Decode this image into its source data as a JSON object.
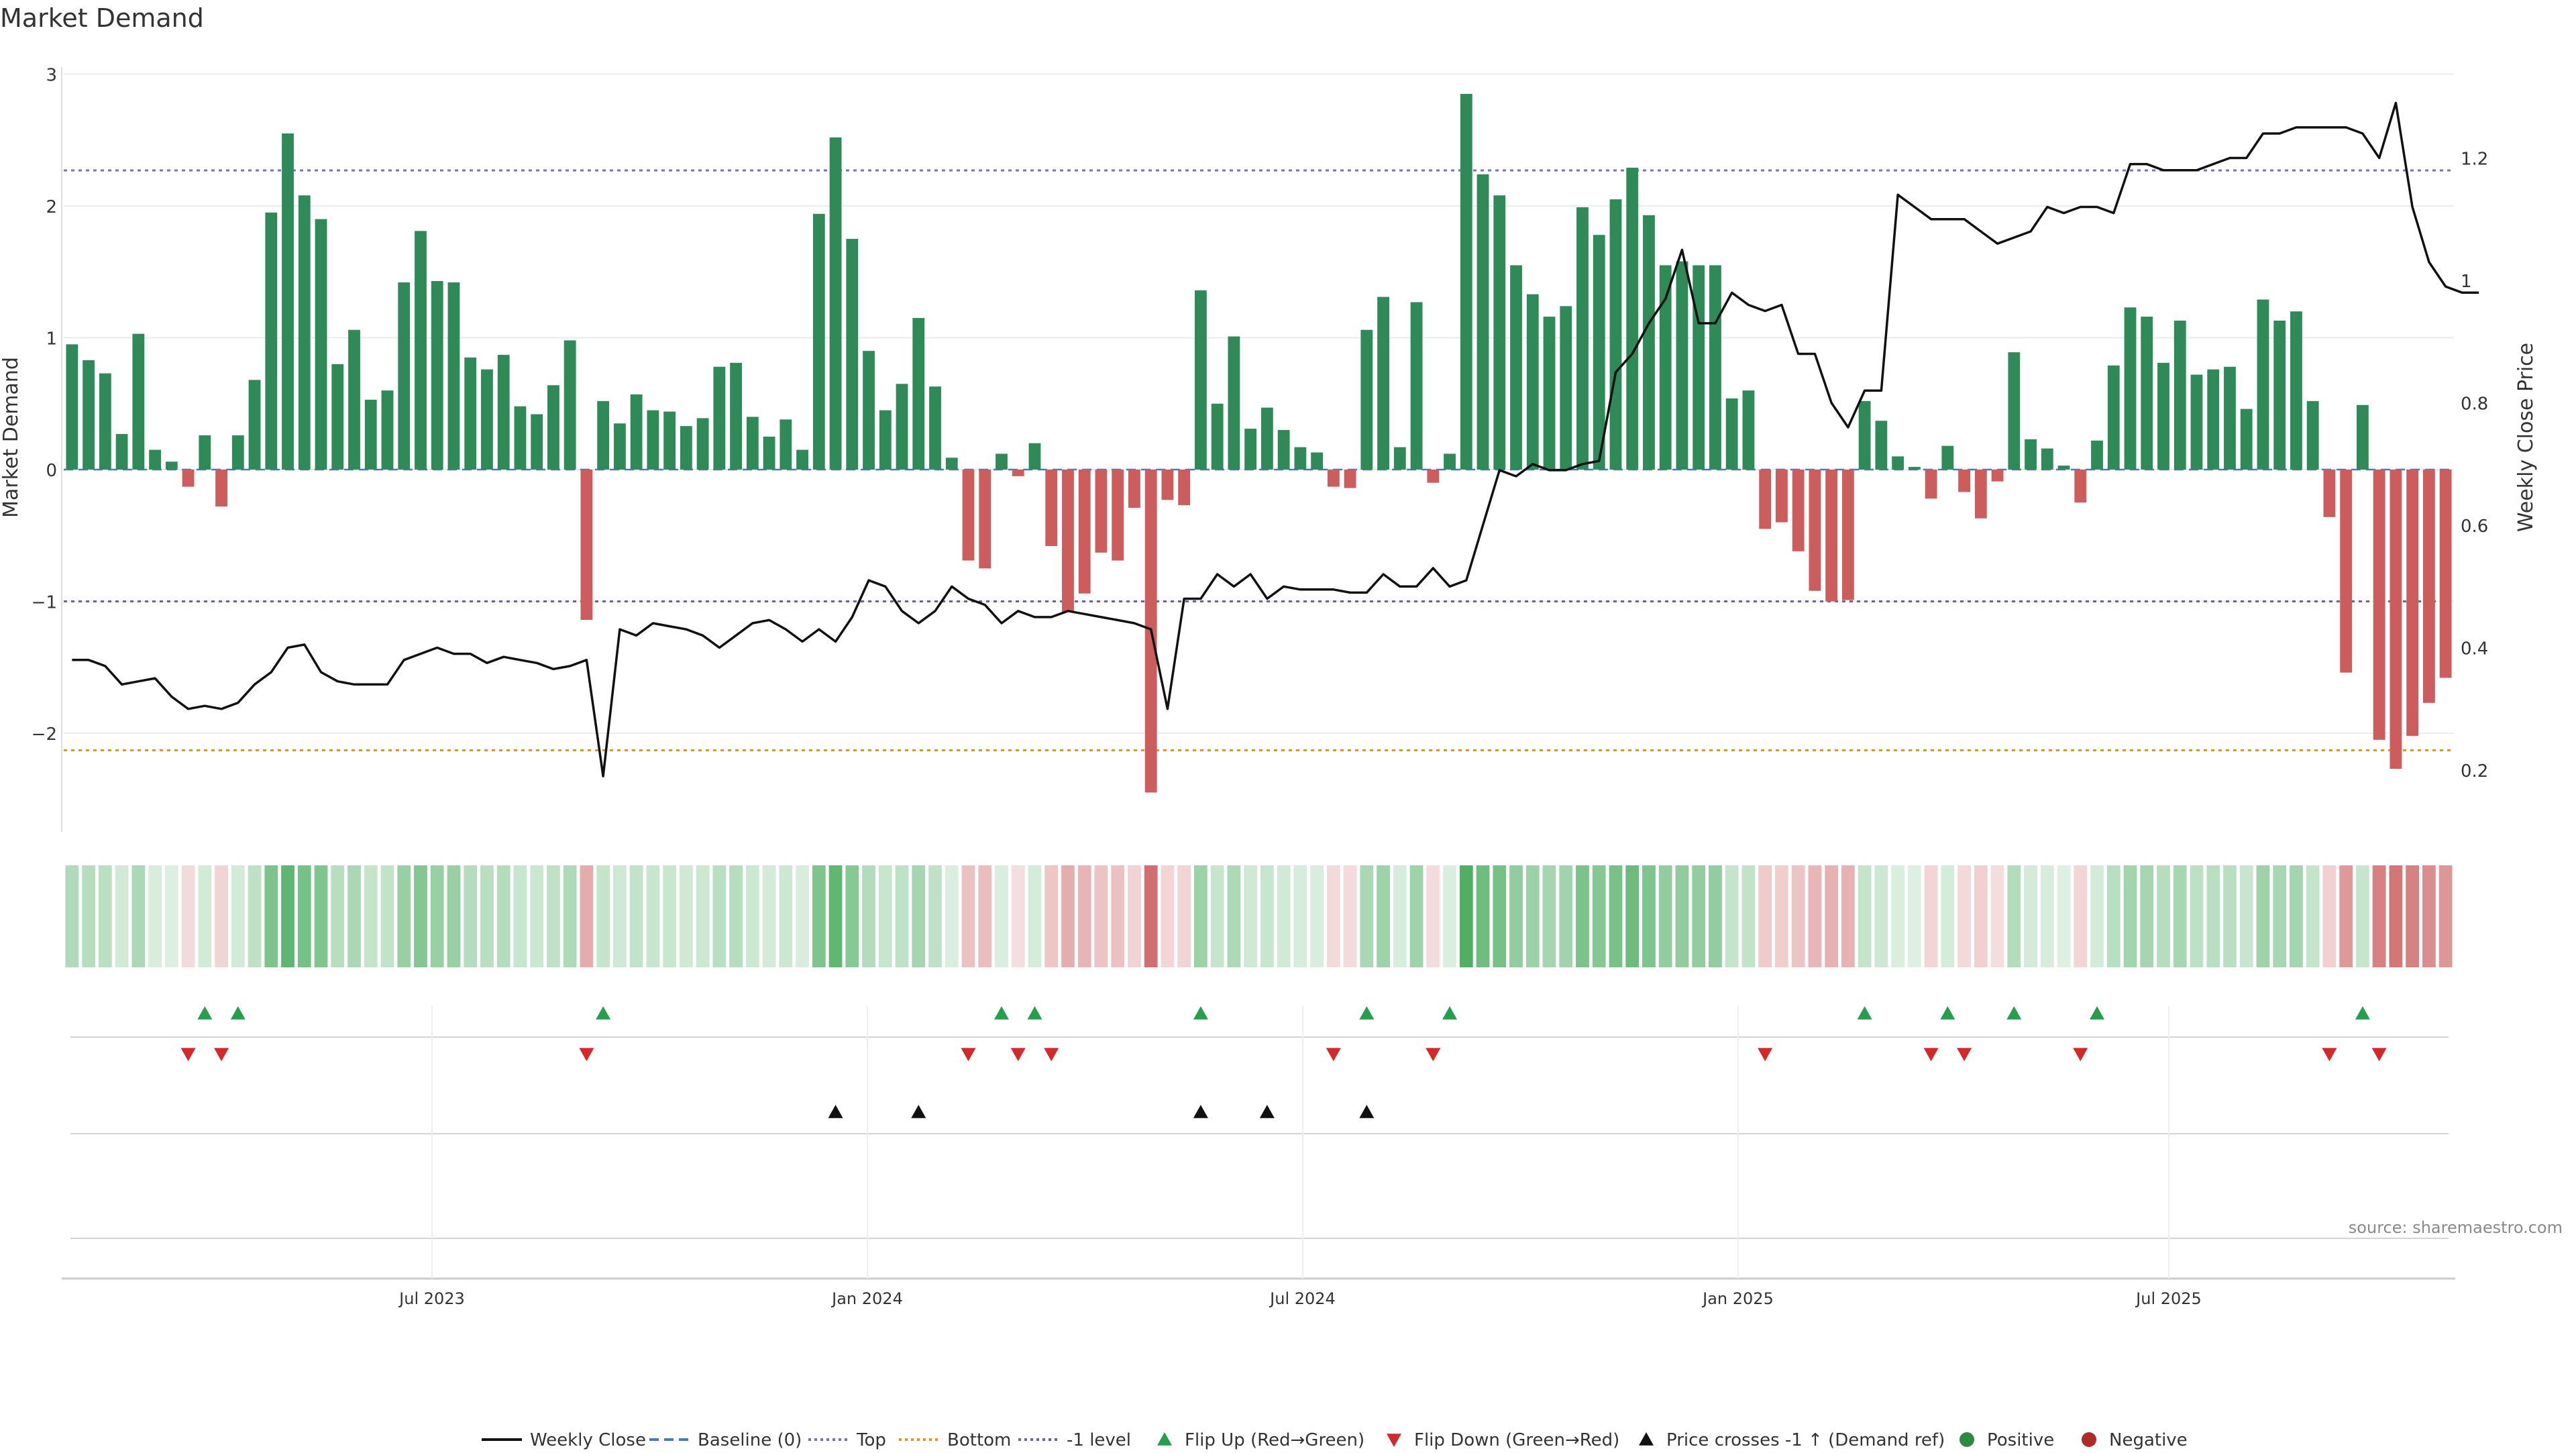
{
  "chart_data": {
    "title": "Market Demand",
    "type": "bar+line",
    "ylabel_left": "Market Demand",
    "ylabel_right": "Weekly Close Price",
    "ylim_left": [
      -2.75,
      3.0
    ],
    "ylim_right": [
      0.1,
      1.33
    ],
    "yticks_left": [
      "3",
      "2",
      "1",
      "0",
      "−1",
      "−2"
    ],
    "yticks_right": [
      "1.2",
      "1",
      "0.8",
      "0.6",
      "0.4",
      "0.2"
    ],
    "x_ticks": [
      "Jul 2023",
      "Jan 2024",
      "Jul 2024",
      "Jan 2025",
      "Jul 2025"
    ],
    "reference_lines": {
      "top": 2.27,
      "bottom": -2.13,
      "minus_one": -1.0,
      "baseline": 0
    },
    "demand": [
      0.95,
      0.83,
      0.73,
      0.27,
      1.03,
      0.15,
      0.06,
      -0.13,
      0.26,
      -0.28,
      0.26,
      0.68,
      1.95,
      2.55,
      2.08,
      1.9,
      0.8,
      1.06,
      0.53,
      0.6,
      1.42,
      1.81,
      1.43,
      1.42,
      0.85,
      0.76,
      0.87,
      0.48,
      0.42,
      0.64,
      0.98,
      -1.14,
      0.52,
      0.35,
      0.57,
      0.45,
      0.44,
      0.33,
      0.39,
      0.78,
      0.81,
      0.4,
      0.25,
      0.38,
      0.15,
      1.94,
      2.52,
      1.75,
      0.9,
      0.45,
      0.65,
      1.15,
      0.63,
      0.09,
      -0.69,
      -0.75,
      0.12,
      -0.05,
      0.2,
      -0.58,
      -1.08,
      -0.94,
      -0.63,
      -0.69,
      -0.29,
      -2.45,
      -0.23,
      -0.27,
      1.36,
      0.5,
      1.01,
      0.31,
      0.47,
      0.3,
      0.17,
      0.13,
      -0.13,
      -0.14,
      1.06,
      1.31,
      0.17,
      1.27,
      -0.1,
      0.12,
      2.85,
      2.24,
      2.08,
      1.55,
      1.33,
      1.16,
      1.24,
      1.99,
      1.78,
      2.05,
      2.29,
      1.93,
      1.55,
      1.58,
      1.55,
      1.55,
      0.54,
      0.6,
      -0.45,
      -0.4,
      -0.62,
      -0.92,
      -1.0,
      -0.99,
      0.52,
      0.37,
      0.1,
      0.02,
      -0.22,
      0.18,
      -0.17,
      -0.37,
      -0.09,
      0.89,
      0.23,
      0.16,
      0.03,
      -0.25,
      0.22,
      0.79,
      1.23,
      1.16,
      0.81,
      1.13,
      0.72,
      0.76,
      0.78,
      0.46,
      1.29,
      1.13,
      1.2,
      0.52,
      -0.36,
      -1.54,
      0.49,
      -2.05,
      -2.27,
      -2.02,
      -1.77,
      -1.58
    ],
    "weekly_close": [
      0.38,
      0.38,
      0.37,
      0.34,
      0.345,
      0.35,
      0.32,
      0.3,
      0.305,
      0.3,
      0.31,
      0.34,
      0.36,
      0.4,
      0.405,
      0.36,
      0.345,
      0.34,
      0.34,
      0.34,
      0.38,
      0.39,
      0.4,
      0.39,
      0.39,
      0.375,
      0.385,
      0.38,
      0.375,
      0.365,
      0.37,
      0.38,
      0.19,
      0.43,
      0.42,
      0.44,
      0.435,
      0.43,
      0.42,
      0.4,
      0.42,
      0.44,
      0.445,
      0.43,
      0.41,
      0.43,
      0.41,
      0.45,
      0.51,
      0.5,
      0.46,
      0.44,
      0.46,
      0.5,
      0.48,
      0.47,
      0.44,
      0.46,
      0.45,
      0.45,
      0.46,
      0.455,
      0.45,
      0.445,
      0.44,
      0.43,
      0.3,
      0.48,
      0.48,
      0.52,
      0.5,
      0.52,
      0.48,
      0.5,
      0.495,
      0.495,
      0.495,
      0.49,
      0.49,
      0.52,
      0.5,
      0.5,
      0.53,
      0.5,
      0.51,
      0.6,
      0.69,
      0.68,
      0.7,
      0.69,
      0.69,
      0.7,
      0.705,
      0.85,
      0.88,
      0.93,
      0.97,
      1.05,
      0.93,
      0.93,
      0.98,
      0.96,
      0.95,
      0.96,
      0.88,
      0.88,
      0.8,
      0.76,
      0.82,
      0.82,
      1.14,
      1.12,
      1.1,
      1.1,
      1.1,
      1.08,
      1.06,
      1.07,
      1.08,
      1.12,
      1.11,
      1.12,
      1.12,
      1.11,
      1.19,
      1.19,
      1.18,
      1.18,
      1.18,
      1.19,
      1.2,
      1.2,
      1.24,
      1.24,
      1.25,
      1.25,
      1.25,
      1.25,
      1.24,
      1.2,
      1.29,
      1.12,
      1.03,
      0.99,
      0.98,
      0.98
    ],
    "flip_up_idx": [
      8,
      10,
      32,
      56,
      58,
      68,
      78,
      83,
      108,
      113,
      117,
      122,
      138
    ],
    "flip_down_idx": [
      7,
      9,
      31,
      54,
      57,
      59,
      76,
      82,
      102,
      112,
      114,
      121,
      136,
      139
    ],
    "price_cross_idx": [
      46,
      51,
      68,
      72,
      78
    ],
    "legend": [
      {
        "label": "Weekly Close",
        "type": "line",
        "color": "#111111"
      },
      {
        "label": "Baseline (0)",
        "type": "dash",
        "color": "#4a78c8"
      },
      {
        "label": "Top",
        "type": "dot",
        "color": "#7b6fb8"
      },
      {
        "label": "Bottom",
        "type": "dot",
        "color": "#e8941a"
      },
      {
        "label": "-1 level",
        "type": "dot",
        "color": "#666699"
      },
      {
        "label": "Flip Up (Red→Green)",
        "type": "tri-up",
        "color": "#22a04a"
      },
      {
        "label": "Flip Down (Green→Red)",
        "type": "tri-down",
        "color": "#d62828"
      },
      {
        "label": "Price crosses -1 ↑ (Demand ref)",
        "type": "tri-up",
        "color": "#111111"
      },
      {
        "label": "Positive",
        "type": "dot-circle",
        "color": "#2e8b3e"
      },
      {
        "label": "Negative",
        "type": "dot-circle",
        "color": "#b02a2a"
      }
    ],
    "colors": {
      "positive": "#2e8b57",
      "negative": "#cd5c5c",
      "line": "#111111"
    }
  },
  "source": "source: sharemaestro.com"
}
